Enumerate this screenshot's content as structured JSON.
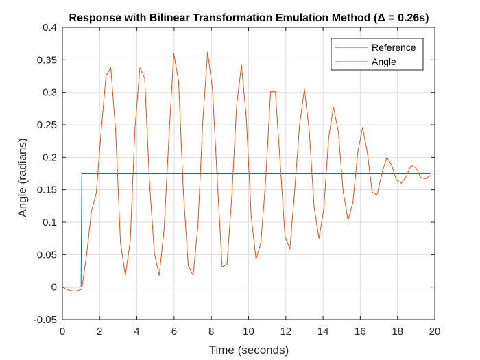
{
  "chart_data": {
    "type": "line",
    "title": "Response with Bilinear Transformation Emulation Method (Δ = 0.26s)",
    "xlabel": "Time (seconds)",
    "ylabel": "Angle (radians)",
    "xlim": [
      0,
      20
    ],
    "ylim": [
      -0.05,
      0.4
    ],
    "xticks": [
      0,
      2,
      4,
      6,
      8,
      10,
      12,
      14,
      16,
      18,
      20
    ],
    "yticks": [
      -0.05,
      0,
      0.05,
      0.1,
      0.15,
      0.2,
      0.25,
      0.3,
      0.35,
      0.4
    ],
    "xtick_labels": [
      "0",
      "2",
      "4",
      "6",
      "8",
      "10",
      "12",
      "14",
      "16",
      "18",
      "20"
    ],
    "ytick_labels": [
      "-0.05",
      "0",
      "0.05",
      "0.1",
      "0.15",
      "0.2",
      "0.25",
      "0.3",
      "0.35",
      "0.4"
    ],
    "grid": true,
    "legend_position": "top-right",
    "series": [
      {
        "name": "Reference",
        "color": "#0072BD",
        "x": [
          0,
          1.0,
          1.04,
          19.76
        ],
        "y": [
          0,
          0,
          0.1745,
          0.1745
        ]
      },
      {
        "name": "Angle",
        "color": "#D95319",
        "x": [
          0,
          0.26,
          0.52,
          0.78,
          1.04,
          1.3,
          1.56,
          1.82,
          2.08,
          2.34,
          2.6,
          2.86,
          3.12,
          3.38,
          3.64,
          3.9,
          4.16,
          4.42,
          4.68,
          4.94,
          5.2,
          5.46,
          5.72,
          5.98,
          6.24,
          6.5,
          6.76,
          7.02,
          7.28,
          7.54,
          7.8,
          8.06,
          8.32,
          8.58,
          8.84,
          9.1,
          9.36,
          9.62,
          9.88,
          10.14,
          10.4,
          10.66,
          10.92,
          11.18,
          11.44,
          11.7,
          11.96,
          12.22,
          12.48,
          12.74,
          13.0,
          13.26,
          13.52,
          13.78,
          14.04,
          14.3,
          14.56,
          14.82,
          15.08,
          15.34,
          15.6,
          15.86,
          16.12,
          16.38,
          16.64,
          16.9,
          17.16,
          17.42,
          17.68,
          17.94,
          18.2,
          18.46,
          18.72,
          18.98,
          19.24,
          19.5,
          19.76
        ],
        "y": [
          0,
          -0.004,
          -0.006,
          -0.006,
          -0.003,
          0.05,
          0.117,
          0.145,
          0.24,
          0.325,
          0.338,
          0.24,
          0.068,
          0.018,
          0.07,
          0.245,
          0.338,
          0.322,
          0.16,
          0.052,
          0.018,
          0.088,
          0.23,
          0.36,
          0.317,
          0.145,
          0.033,
          0.018,
          0.095,
          0.255,
          0.362,
          0.305,
          0.165,
          0.031,
          0.035,
          0.14,
          0.28,
          0.342,
          0.26,
          0.11,
          0.043,
          0.068,
          0.165,
          0.301,
          0.301,
          0.19,
          0.077,
          0.059,
          0.15,
          0.25,
          0.305,
          0.24,
          0.123,
          0.075,
          0.12,
          0.23,
          0.277,
          0.24,
          0.147,
          0.103,
          0.13,
          0.206,
          0.246,
          0.207,
          0.146,
          0.142,
          0.175,
          0.2,
          0.188,
          0.165,
          0.16,
          0.17,
          0.187,
          0.184,
          0.169,
          0.167,
          0.172
        ]
      }
    ]
  }
}
